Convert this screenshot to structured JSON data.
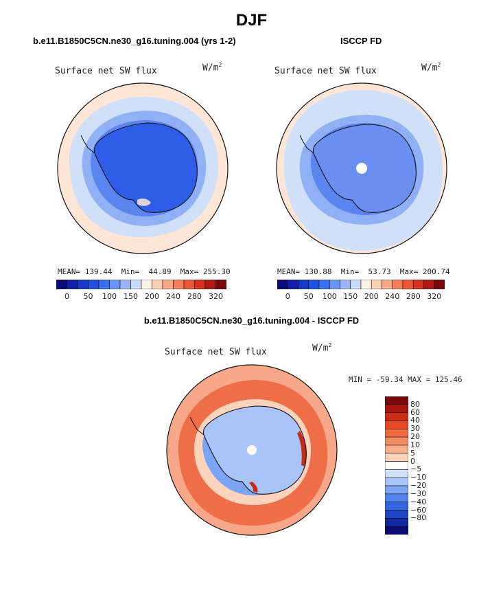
{
  "figure": {
    "title": "DJF",
    "difference_title": "b.e11.B1850C5CN.ne30_g16.tuning.004 - ISCCP FD"
  },
  "panels": [
    {
      "title": "b.e11.B1850C5CN.ne30_g16.tuning.004 (yrs 1-2)",
      "variable": "Surface net SW flux",
      "units_base": "W/m",
      "units_exp": "2",
      "stats": "MEAN= 139.44  Min=  44.89  Max= 255.30"
    },
    {
      "title": "ISCCP FD",
      "variable": "Surface net SW flux",
      "units_base": "W/m",
      "units_exp": "2",
      "stats": "MEAN= 130.88  Min=  53.73  Max= 200.74"
    },
    {
      "title": "",
      "variable": "Surface net SW flux",
      "units_base": "W/m",
      "units_exp": "2",
      "stats": "MIN = -59.34 MAX = 125.46"
    }
  ],
  "colorbar_abs": {
    "colors": [
      "#0a0a7a",
      "#1020a8",
      "#1838c8",
      "#2050e0",
      "#3a6ef0",
      "#6a94f5",
      "#9ab6f8",
      "#c8daf8",
      "#fff3e8",
      "#fcd0b4",
      "#f8a886",
      "#f47e5a",
      "#ea5632",
      "#d4301c",
      "#ac1a12",
      "#7a0a0a"
    ],
    "labels": [
      "0",
      "50",
      "100",
      "150",
      "200",
      "240",
      "280",
      "320"
    ]
  },
  "colorbar_diff": {
    "colors": [
      "#7a0a0a",
      "#a81410",
      "#cc2c14",
      "#e64820",
      "#f06a40",
      "#f48c62",
      "#f8ae88",
      "#fcd4bc",
      "#ffffff",
      "#d0e0fa",
      "#a8c4f8",
      "#7ca4f4",
      "#5284ee",
      "#3264e4",
      "#1e44c8",
      "#1228a0",
      "#0a0a78"
    ],
    "labels": [
      "80",
      "60",
      "40",
      "30",
      "20",
      "10",
      "5",
      "0",
      "−5",
      "−10",
      "−20",
      "−30",
      "−40",
      "−60",
      "−80"
    ]
  },
  "map_palette": {
    "ocean_pale": "#fde6d6",
    "light_blue": "#cfe0f8",
    "mid_blue": "#8fb0f4",
    "blue": "#5a84ee",
    "deep_blue": "#2d5de6",
    "red_light": "#f6a888",
    "red": "#ee6e48",
    "red_dark": "#c42a18",
    "coast": "#111111"
  }
}
